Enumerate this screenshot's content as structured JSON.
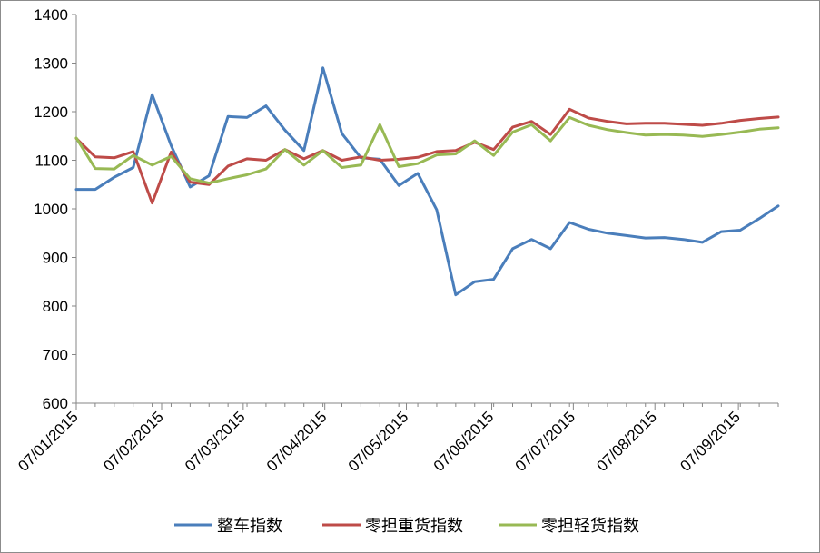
{
  "chart_data": {
    "type": "line",
    "title": "",
    "xlabel": "",
    "ylabel": "",
    "ylim": [
      600,
      1400
    ],
    "y_ticks": [
      600,
      700,
      800,
      900,
      1000,
      1100,
      1200,
      1300,
      1400
    ],
    "x_tick_labels": [
      "07/01/2015",
      "07/02/2015",
      "07/03/2015",
      "07/04/2015",
      "07/05/2015",
      "07/06/2015",
      "07/07/2015",
      "07/08/2015",
      "07/09/2015"
    ],
    "x_tick_index": [
      0,
      4.5,
      8.8,
      13.1,
      17.4,
      21.9,
      26.2,
      30.5,
      34.9
    ],
    "legend_position": "bottom",
    "grid": false,
    "series": [
      {
        "name": "整车指数",
        "color": "#4a7ebb",
        "values": [
          1040,
          1040,
          1065,
          1085,
          1235,
          1130,
          1045,
          1068,
          1190,
          1188,
          1212,
          1162,
          1120,
          1290,
          1155,
          1105,
          1102,
          1048,
          1073,
          998,
          823,
          850,
          855,
          918,
          937,
          918,
          972,
          958,
          950,
          945,
          940,
          941,
          937,
          931,
          953,
          956,
          980,
          1006
        ]
      },
      {
        "name": "零担重货指数",
        "color": "#be4b48",
        "values": [
          1145,
          1107,
          1105,
          1118,
          1012,
          1117,
          1055,
          1050,
          1088,
          1103,
          1100,
          1122,
          1103,
          1120,
          1100,
          1107,
          1100,
          1102,
          1106,
          1118,
          1120,
          1137,
          1122,
          1168,
          1180,
          1153,
          1205,
          1187,
          1180,
          1175,
          1176,
          1176,
          1174,
          1172,
          1176,
          1182,
          1186,
          1189
        ]
      },
      {
        "name": "零担轻货指数",
        "color": "#98b954",
        "values": [
          1146,
          1083,
          1082,
          1110,
          1090,
          1108,
          1062,
          1053,
          1062,
          1070,
          1082,
          1122,
          1090,
          1120,
          1085,
          1090,
          1173,
          1087,
          1093,
          1111,
          1113,
          1140,
          1110,
          1158,
          1173,
          1140,
          1188,
          1172,
          1163,
          1157,
          1152,
          1153,
          1152,
          1149,
          1153,
          1158,
          1164,
          1167
        ]
      }
    ]
  }
}
